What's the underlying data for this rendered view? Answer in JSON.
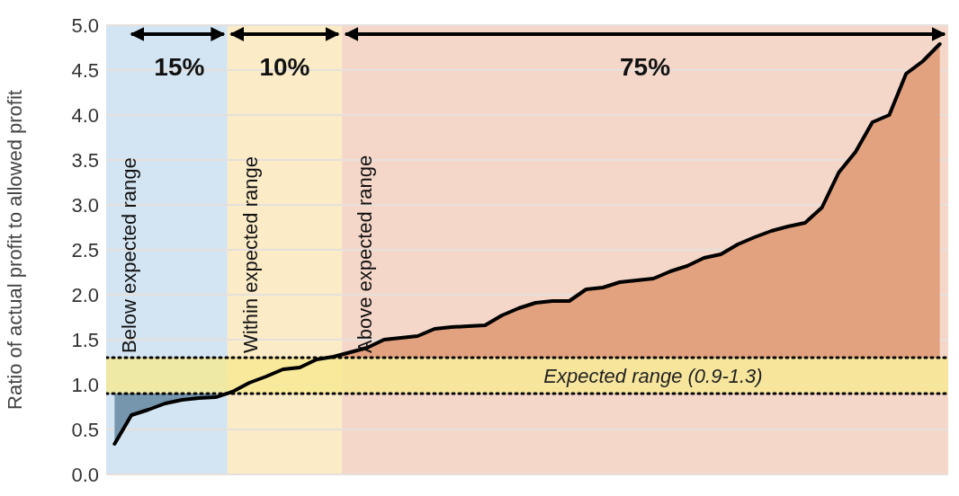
{
  "chart_data": {
    "type": "line",
    "ylabel": "Ratio of actual profit to allowed profit",
    "categories": [
      null,
      null,
      null,
      null,
      null,
      null,
      null,
      null,
      null,
      null,
      null,
      null,
      null,
      null,
      null,
      null,
      null,
      null,
      null,
      null,
      null,
      null,
      null,
      null,
      null,
      null,
      null,
      null,
      null,
      null,
      null,
      null,
      null,
      null,
      null,
      null,
      null,
      null,
      null,
      null,
      null,
      null,
      null,
      null,
      null,
      null,
      null,
      null,
      null,
      null
    ],
    "ylim": [
      0,
      5
    ],
    "yticks": [
      {
        "value": 0,
        "label": "0.0"
      },
      {
        "value": 0.5,
        "label": "0.5"
      },
      {
        "value": 1,
        "label": "1.0"
      },
      {
        "value": 1.5,
        "label": "1.5"
      },
      {
        "value": 2,
        "label": "2.0"
      },
      {
        "value": 2.5,
        "label": "2.5"
      },
      {
        "value": 3,
        "label": "3.0"
      },
      {
        "value": 3.5,
        "label": "3.5"
      },
      {
        "value": 4,
        "label": "4.0"
      },
      {
        "value": 4.5,
        "label": "4.5"
      },
      {
        "value": 5,
        "label": "5.0"
      }
    ],
    "grid": "y",
    "series": [
      {
        "type": "line",
        "color": "#000000",
        "values": [
          0.34,
          0.66,
          0.72,
          0.79,
          0.83,
          0.85,
          0.86,
          0.92,
          1.02,
          1.09,
          1.17,
          1.19,
          1.28,
          1.31,
          1.36,
          1.41,
          1.5,
          1.52,
          1.54,
          1.62,
          1.64,
          1.65,
          1.66,
          1.77,
          1.85,
          1.91,
          1.93,
          1.93,
          2.06,
          2.08,
          2.14,
          2.16,
          2.18,
          2.26,
          2.32,
          2.41,
          2.45,
          2.56,
          2.64,
          2.71,
          2.76,
          2.8,
          2.97,
          3.36,
          3.59,
          3.92,
          4.0,
          4.46,
          4.6,
          4.79
        ],
        "lower": [
          0.34,
          0.66,
          0.72,
          0.79,
          0.83,
          0.85,
          0.86,
          null,
          null,
          null,
          null,
          null,
          null,
          1.3,
          1.3,
          1.3,
          1.3,
          1.3,
          1.3,
          1.3,
          1.3,
          1.3,
          1.3,
          1.3,
          1.3,
          1.3,
          1.3,
          1.3,
          1.3,
          1.3,
          1.3,
          1.3,
          1.3,
          1.3,
          1.3,
          1.3,
          1.3,
          1.3,
          1.3,
          1.3,
          1.3,
          1.3,
          1.3,
          1.3,
          1.3,
          1.3,
          1.3,
          1.3,
          1.3,
          1.3
        ],
        "upper": [
          0.9,
          0.9,
          0.9,
          0.9,
          0.9,
          0.9,
          0.9,
          null,
          null,
          null,
          null,
          null,
          null,
          1.31,
          1.36,
          1.41,
          1.5,
          1.52,
          1.54,
          1.62,
          1.64,
          1.65,
          1.66,
          1.77,
          1.85,
          1.91,
          1.93,
          1.93,
          2.06,
          2.08,
          2.14,
          2.16,
          2.18,
          2.26,
          2.32,
          2.41,
          2.45,
          2.56,
          2.64,
          2.71,
          2.76,
          2.8,
          2.97,
          3.36,
          3.59,
          3.92,
          4.0,
          4.46,
          4.6,
          4.79
        ]
      }
    ],
    "bands": [
      {
        "axis": "y",
        "from": 0.9,
        "to": 1.3,
        "label": "Expected range (0.9-1.3)",
        "color": "#f8ea8c"
      }
    ],
    "ref_lines": [
      {
        "axis": "y",
        "value": 0.9,
        "line_style": "dotted",
        "color": "#000000"
      },
      {
        "axis": "y",
        "value": 1.3,
        "line_style": "dotted",
        "color": "#000000"
      }
    ],
    "annotations": [
      "15%",
      "10%",
      "75%",
      "Below expected range",
      "Within expected range",
      "Above expected range"
    ]
  }
}
